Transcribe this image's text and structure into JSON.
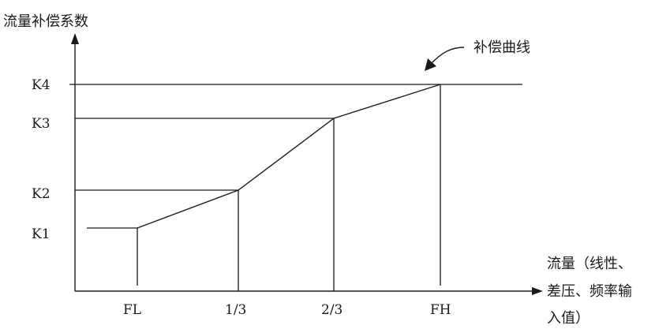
{
  "diagram": {
    "y_axis_label": "流量补偿系数",
    "x_axis_label_lines": [
      "流量（线性、",
      "差压、频率输",
      "入值）"
    ],
    "curve_label": "补偿曲线",
    "y_levels": [
      "K1",
      "K2",
      "K3",
      "K4"
    ],
    "x_points": [
      "FL",
      "1/3",
      "2/3",
      "FH"
    ],
    "curve": [
      {
        "x": "FL",
        "y": "K1"
      },
      {
        "x": "1/3",
        "y": "K2"
      },
      {
        "x": "2/3",
        "y": "K3"
      },
      {
        "x": "FH",
        "y": "K4"
      }
    ]
  }
}
